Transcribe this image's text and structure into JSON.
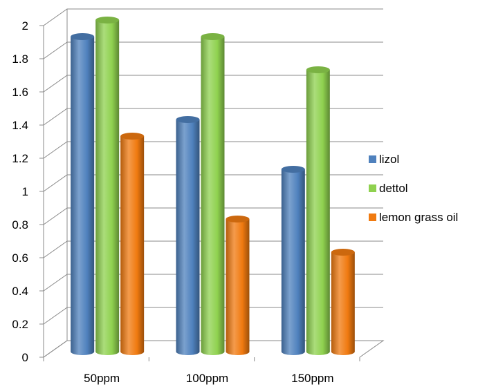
{
  "chart_data": {
    "type": "bar",
    "title": "",
    "xlabel": "",
    "ylabel": "",
    "categories": [
      "50ppm",
      "100ppm",
      "150ppm"
    ],
    "series": [
      {
        "name": "lizol",
        "values": [
          1.9,
          1.4,
          1.1
        ],
        "color": "#4f81bd"
      },
      {
        "name": "dettol",
        "values": [
          2.0,
          1.9,
          1.7
        ],
        "color": "#8fd14f"
      },
      {
        "name": "lemon grass oil",
        "values": [
          1.3,
          0.8,
          0.6
        ],
        "color": "#f07a10"
      }
    ],
    "ylim": [
      0,
      2
    ],
    "yticks": [
      "0",
      "0.2",
      "0.4",
      "0.6",
      "0.8",
      "1",
      "1.2",
      "1.4",
      "1.6",
      "1.8",
      "2"
    ],
    "grid": true,
    "legend": "right",
    "style": "3d-cylinder"
  }
}
